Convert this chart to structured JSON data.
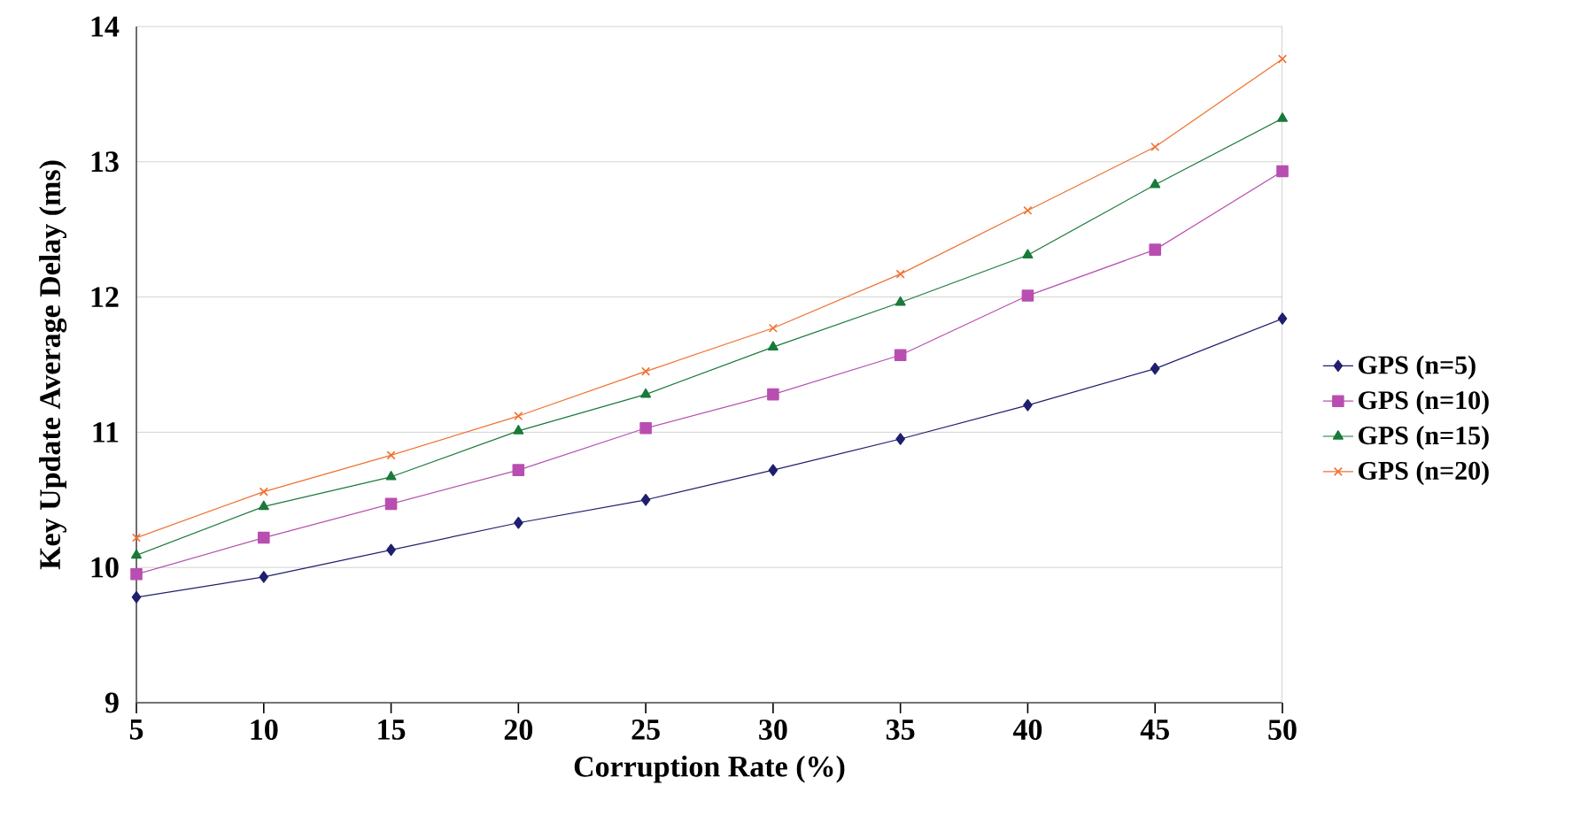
{
  "chart_data": {
    "type": "line",
    "xlabel": "Corruption Rate (%)",
    "ylabel": "Key Update Average Delay (ms)",
    "x": [
      5,
      10,
      15,
      20,
      25,
      30,
      35,
      40,
      45,
      50
    ],
    "series": [
      {
        "name": "GPS (n=5)",
        "color": "#1f1f6e",
        "marker": "diamond",
        "values": [
          9.78,
          9.93,
          10.13,
          10.33,
          10.5,
          10.72,
          10.95,
          11.2,
          11.47,
          11.84
        ]
      },
      {
        "name": "GPS (n=10)",
        "color": "#b84fb0",
        "marker": "square",
        "values": [
          9.95,
          10.22,
          10.47,
          10.72,
          11.03,
          11.28,
          11.57,
          12.01,
          12.35,
          12.93
        ]
      },
      {
        "name": "GPS (n=15)",
        "color": "#1a7a3a",
        "marker": "triangle",
        "values": [
          10.09,
          10.45,
          10.67,
          11.01,
          11.28,
          11.63,
          11.96,
          12.31,
          12.83,
          13.32
        ]
      },
      {
        "name": "GPS (n=20)",
        "color": "#f07030",
        "marker": "cross",
        "values": [
          10.22,
          10.56,
          10.83,
          11.12,
          11.45,
          11.77,
          12.17,
          12.64,
          13.11,
          13.76
        ]
      }
    ],
    "xlim": [
      5,
      50
    ],
    "ylim": [
      9,
      14
    ],
    "xticks": [
      5,
      10,
      15,
      20,
      25,
      30,
      35,
      40,
      45,
      50
    ],
    "yticks": [
      9,
      10,
      11,
      12,
      13,
      14
    ],
    "grid": "y",
    "legend": "right",
    "line_style": "solid"
  }
}
